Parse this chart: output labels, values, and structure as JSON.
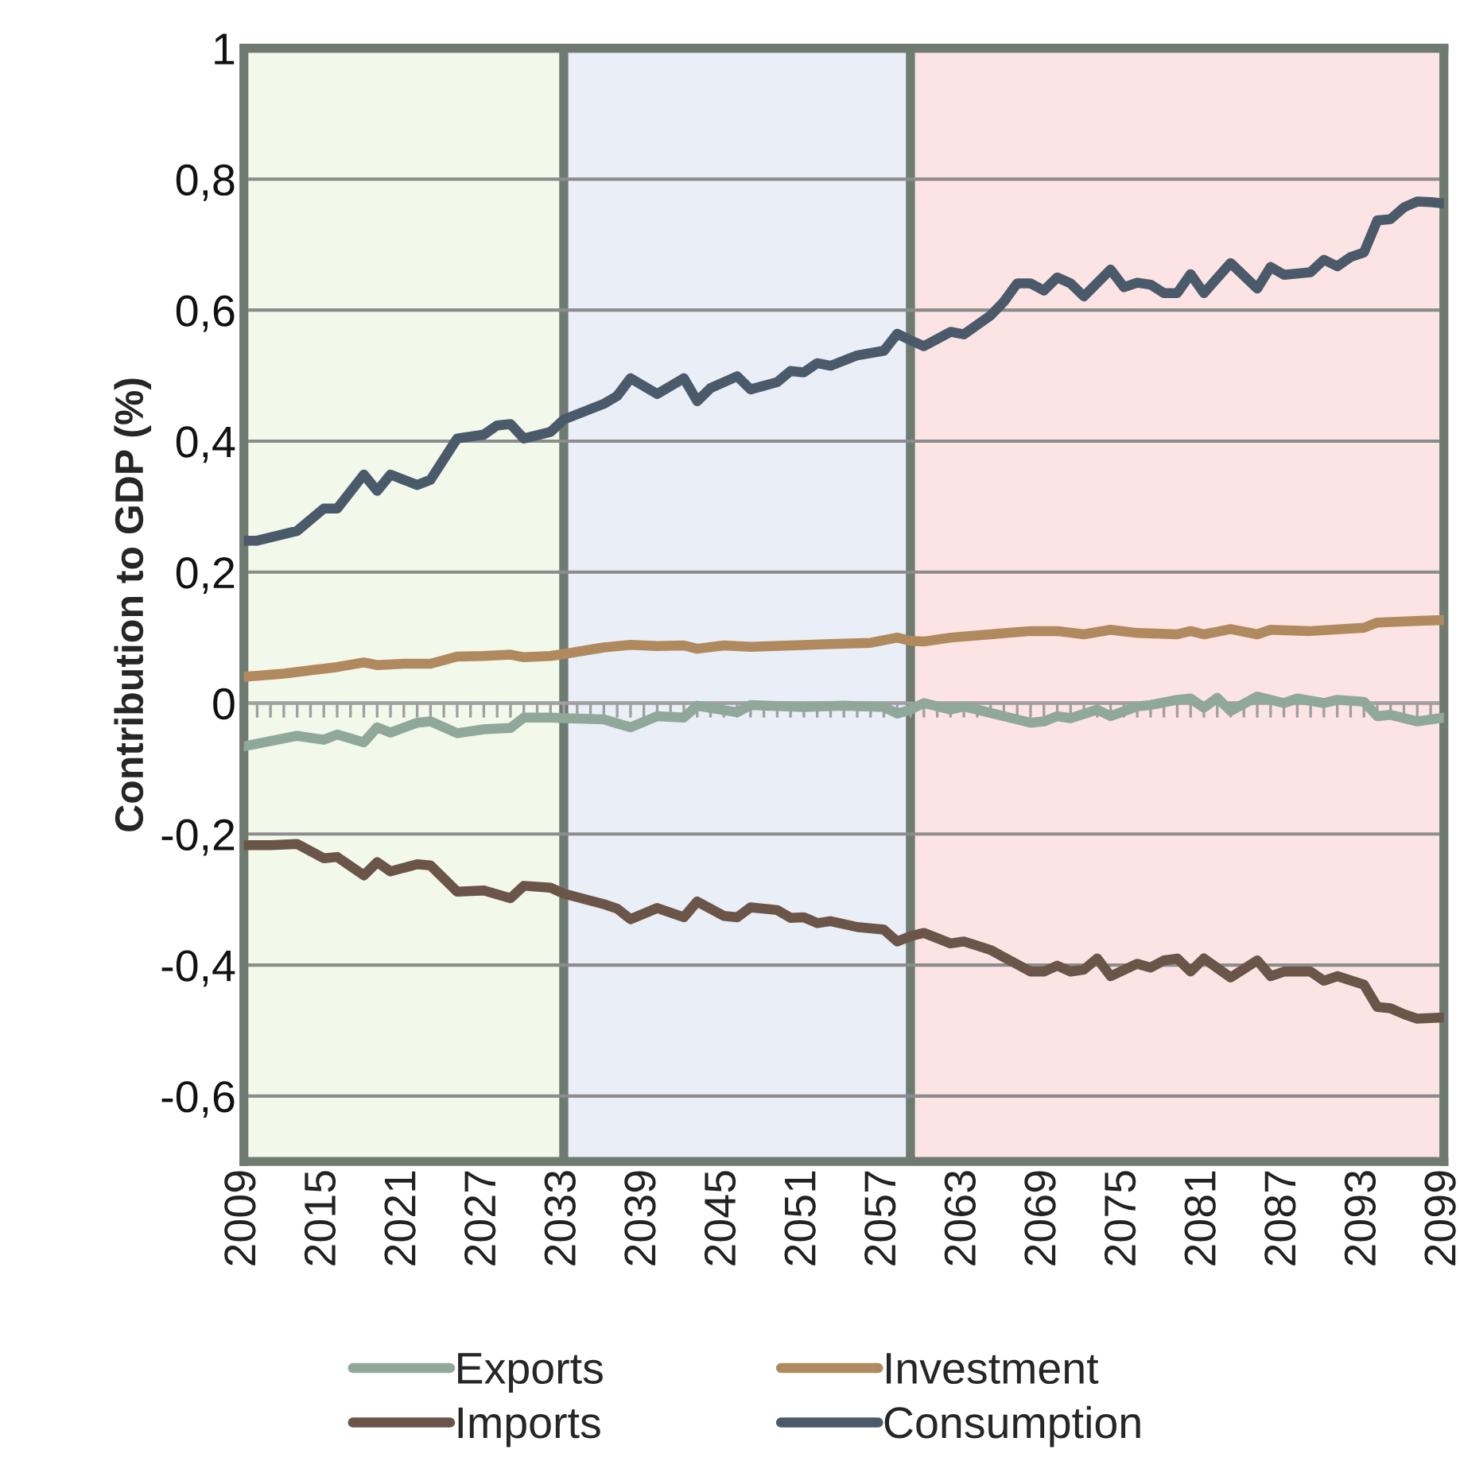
{
  "chart_data": {
    "type": "line",
    "ylabel": "Contribution to GDP (%)",
    "xlim": [
      2009,
      2099
    ],
    "xticks": [
      2009,
      2015,
      2021,
      2027,
      2033,
      2039,
      2045,
      2051,
      2057,
      2063,
      2069,
      2075,
      2081,
      2087,
      2093,
      2099
    ],
    "ylim": [
      -0.7,
      1
    ],
    "yticks": [
      {
        "value": -0.6,
        "label": "-0,6"
      },
      {
        "value": -0.4,
        "label": "-0,4"
      },
      {
        "value": -0.2,
        "label": "-0,2"
      },
      0,
      {
        "value": 0.2,
        "label": "0,2"
      },
      {
        "value": 0.4,
        "label": "0,4"
      },
      {
        "value": 0.6,
        "label": "0,6"
      },
      {
        "value": 0.8,
        "label": "0,8"
      },
      1
    ],
    "grid": "y",
    "legend": "bottom",
    "line_style": "solid",
    "marker": "none",
    "bands": [
      {
        "axis": "x",
        "from": 2009,
        "to": 2033,
        "color": "#f2f8ea"
      },
      {
        "axis": "x",
        "from": 2033,
        "to": 2059,
        "color": "#e9eef7"
      },
      {
        "axis": "x",
        "from": 2059,
        "to": 2099,
        "color": "#fde4e4"
      }
    ],
    "ref_lines": [
      {
        "axis": "y",
        "value": 0,
        "color": "#a0a0a0"
      }
    ],
    "series": [
      {
        "name": "Exports",
        "color": "#8fa89a",
        "x": [
          2009,
          2013,
          2015,
          2016,
          2018,
          2019,
          2020,
          2022,
          2023,
          2025,
          2027,
          2029,
          2030,
          2032,
          2033,
          2036,
          2038,
          2040,
          2042,
          2043,
          2046,
          2047,
          2051,
          2054,
          2057,
          2058,
          2059,
          2060,
          2062,
          2063,
          2065,
          2066,
          2068,
          2069,
          2070,
          2071,
          2073,
          2074,
          2076,
          2077,
          2079,
          2080,
          2081,
          2082,
          2083,
          2085,
          2087,
          2088,
          2090,
          2091,
          2093,
          2094,
          2095,
          2097,
          2099
        ],
        "values": [
          -0.066,
          -0.05,
          -0.056,
          -0.048,
          -0.06,
          -0.037,
          -0.045,
          -0.03,
          -0.028,
          -0.046,
          -0.04,
          -0.038,
          -0.022,
          -0.022,
          -0.023,
          -0.025,
          -0.037,
          -0.02,
          -0.022,
          -0.004,
          -0.014,
          -0.003,
          -0.006,
          -0.004,
          -0.006,
          -0.016,
          -0.01,
          0.0,
          -0.01,
          -0.005,
          -0.015,
          -0.02,
          -0.03,
          -0.028,
          -0.02,
          -0.023,
          -0.01,
          -0.02,
          -0.005,
          -0.003,
          0.005,
          0.007,
          -0.007,
          0.008,
          -0.012,
          0.01,
          0.0,
          0.007,
          0.0,
          0.005,
          0.002,
          -0.02,
          -0.018,
          -0.028,
          -0.022
        ]
      },
      {
        "name": "Imports",
        "color": "#6b5549",
        "x": [
          2009,
          2011,
          2013,
          2015,
          2016,
          2018,
          2019,
          2020,
          2022,
          2023,
          2025,
          2027,
          2029,
          2030,
          2032,
          2033,
          2036,
          2037,
          2038,
          2040,
          2042,
          2043,
          2045,
          2046,
          2047,
          2049,
          2050,
          2051,
          2052,
          2053,
          2055,
          2057,
          2058,
          2059,
          2060,
          2062,
          2063,
          2065,
          2066,
          2068,
          2069,
          2070,
          2071,
          2072,
          2073,
          2074,
          2076,
          2077,
          2078,
          2079,
          2080,
          2081,
          2083,
          2085,
          2086,
          2087,
          2089,
          2090,
          2091,
          2093,
          2094,
          2095,
          2096,
          2097,
          2099
        ],
        "values": [
          -0.217,
          -0.217,
          -0.215,
          -0.237,
          -0.235,
          -0.263,
          -0.243,
          -0.257,
          -0.246,
          -0.248,
          -0.288,
          -0.286,
          -0.298,
          -0.279,
          -0.282,
          -0.291,
          -0.307,
          -0.314,
          -0.33,
          -0.313,
          -0.327,
          -0.303,
          -0.325,
          -0.327,
          -0.312,
          -0.316,
          -0.328,
          -0.327,
          -0.336,
          -0.333,
          -0.342,
          -0.346,
          -0.364,
          -0.356,
          -0.351,
          -0.367,
          -0.364,
          -0.377,
          -0.388,
          -0.41,
          -0.41,
          -0.401,
          -0.41,
          -0.407,
          -0.39,
          -0.417,
          -0.398,
          -0.404,
          -0.393,
          -0.39,
          -0.41,
          -0.39,
          -0.419,
          -0.393,
          -0.417,
          -0.41,
          -0.41,
          -0.424,
          -0.417,
          -0.43,
          -0.464,
          -0.466,
          -0.475,
          -0.482,
          -0.48
        ]
      },
      {
        "name": "Investment",
        "color": "#b08a5e",
        "x": [
          2009,
          2012,
          2014,
          2016,
          2018,
          2019,
          2021,
          2023,
          2025,
          2027,
          2029,
          2030,
          2032,
          2033,
          2036,
          2038,
          2040,
          2042,
          2043,
          2045,
          2047,
          2050,
          2053,
          2056,
          2058,
          2059,
          2060,
          2062,
          2065,
          2068,
          2070,
          2072,
          2074,
          2076,
          2079,
          2080,
          2081,
          2083,
          2085,
          2086,
          2089,
          2093,
          2094,
          2099
        ],
        "values": [
          0.04,
          0.045,
          0.05,
          0.055,
          0.062,
          0.058,
          0.06,
          0.06,
          0.071,
          0.072,
          0.074,
          0.07,
          0.072,
          0.075,
          0.085,
          0.089,
          0.087,
          0.088,
          0.083,
          0.088,
          0.086,
          0.088,
          0.09,
          0.092,
          0.1,
          0.095,
          0.094,
          0.1,
          0.105,
          0.11,
          0.11,
          0.105,
          0.112,
          0.107,
          0.105,
          0.11,
          0.105,
          0.113,
          0.105,
          0.112,
          0.11,
          0.115,
          0.123,
          0.127
        ]
      },
      {
        "name": "Consumption",
        "color": "#4a5a6a",
        "x": [
          2009,
          2010,
          2013,
          2015,
          2016,
          2018,
          2019,
          2020,
          2022,
          2023,
          2025,
          2027,
          2028,
          2029,
          2030,
          2032,
          2033,
          2036,
          2037,
          2038,
          2040,
          2042,
          2043,
          2044,
          2046,
          2047,
          2049,
          2050,
          2051,
          2052,
          2053,
          2055,
          2057,
          2058,
          2059,
          2060,
          2062,
          2063,
          2065,
          2066,
          2067,
          2068,
          2069,
          2070,
          2071,
          2072,
          2074,
          2075,
          2076,
          2077,
          2078,
          2079,
          2080,
          2081,
          2083,
          2085,
          2086,
          2087,
          2089,
          2090,
          2091,
          2092,
          2093,
          2094,
          2095,
          2096,
          2097,
          2098,
          2099
        ],
        "values": [
          0.248,
          0.248,
          0.263,
          0.297,
          0.297,
          0.349,
          0.324,
          0.349,
          0.333,
          0.341,
          0.404,
          0.41,
          0.424,
          0.426,
          0.404,
          0.414,
          0.433,
          0.457,
          0.469,
          0.496,
          0.472,
          0.496,
          0.461,
          0.481,
          0.499,
          0.479,
          0.49,
          0.507,
          0.505,
          0.519,
          0.515,
          0.531,
          0.538,
          0.564,
          0.554,
          0.545,
          0.567,
          0.563,
          0.592,
          0.613,
          0.641,
          0.641,
          0.63,
          0.65,
          0.641,
          0.621,
          0.662,
          0.635,
          0.642,
          0.639,
          0.626,
          0.626,
          0.655,
          0.626,
          0.672,
          0.633,
          0.666,
          0.654,
          0.658,
          0.677,
          0.667,
          0.681,
          0.688,
          0.737,
          0.739,
          0.757,
          0.766,
          0.765,
          0.763
        ]
      }
    ]
  }
}
